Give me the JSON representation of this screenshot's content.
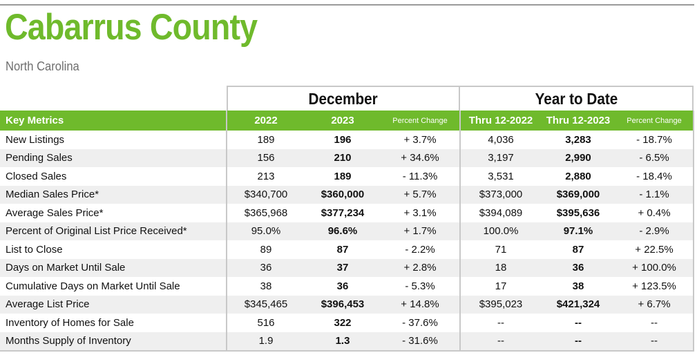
{
  "title": "Cabarrus County",
  "subtitle": "North Carolina",
  "groups": {
    "december": "December",
    "ytd": "Year to Date"
  },
  "headers": {
    "metric": "Key Metrics",
    "dec_2022": "2022",
    "dec_2023": "2023",
    "dec_pct": "Percent Change",
    "ytd_2022": "Thru 12-2022",
    "ytd_2023": "Thru 12-2023",
    "ytd_pct": "Percent Change"
  },
  "colors": {
    "brand_green": "#6fba2c",
    "row_stripe": "#efefef",
    "subtitle_gray": "#6e6e6e"
  },
  "rows": [
    [
      "New Listings",
      "189",
      "196",
      "+ 3.7%",
      "4,036",
      "3,283",
      "- 18.7%"
    ],
    [
      "Pending Sales",
      "156",
      "210",
      "+ 34.6%",
      "3,197",
      "2,990",
      "- 6.5%"
    ],
    [
      "Closed Sales",
      "213",
      "189",
      "- 11.3%",
      "3,531",
      "2,880",
      "- 18.4%"
    ],
    [
      "Median Sales Price*",
      "$340,700",
      "$360,000",
      "+ 5.7%",
      "$373,000",
      "$369,000",
      "- 1.1%"
    ],
    [
      "Average Sales Price*",
      "$365,968",
      "$377,234",
      "+ 3.1%",
      "$394,089",
      "$395,636",
      "+ 0.4%"
    ],
    [
      "Percent of Original List Price Received*",
      "95.0%",
      "96.6%",
      "+ 1.7%",
      "100.0%",
      "97.1%",
      "- 2.9%"
    ],
    [
      "List to Close",
      "89",
      "87",
      "- 2.2%",
      "71",
      "87",
      "+ 22.5%"
    ],
    [
      "Days on Market Until Sale",
      "36",
      "37",
      "+ 2.8%",
      "18",
      "36",
      "+ 100.0%"
    ],
    [
      "Cumulative Days on Market Until Sale",
      "38",
      "36",
      "- 5.3%",
      "17",
      "38",
      "+ 123.5%"
    ],
    [
      "Average List Price",
      "$345,465",
      "$396,453",
      "+ 14.8%",
      "$395,023",
      "$421,324",
      "+ 6.7%"
    ],
    [
      "Inventory of Homes for Sale",
      "516",
      "322",
      "- 37.6%",
      "--",
      "--",
      "--"
    ],
    [
      "Months Supply of Inventory",
      "1.9",
      "1.3",
      "- 31.6%",
      "--",
      "--",
      "--"
    ]
  ]
}
